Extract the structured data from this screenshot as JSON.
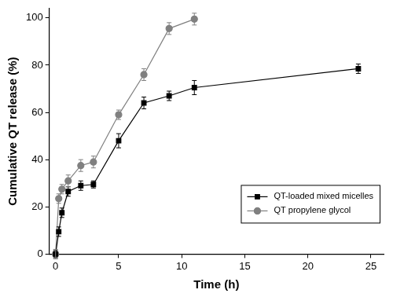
{
  "chart_data": {
    "type": "line",
    "x_label": "Time (h)",
    "y_label": "Cumulative QT release (%)",
    "xlim": [
      -0.5,
      26
    ],
    "xticks": [
      0,
      5,
      10,
      15,
      20,
      25
    ],
    "ylim": [
      0,
      104
    ],
    "yticks": [
      0,
      20,
      40,
      60,
      80,
      100
    ],
    "grid": false,
    "legend": "lower right",
    "series": [
      {
        "name": "QT-loaded mixed micelles",
        "color": "#000000",
        "marker": "square",
        "line_style": "solid",
        "x": [
          0,
          0.25,
          0.5,
          1,
          2,
          3,
          5,
          7,
          9,
          11,
          24
        ],
        "values": [
          0,
          9.5,
          17.5,
          26.5,
          29,
          29.5,
          48,
          64,
          67,
          70.5,
          78.5
        ],
        "errors": [
          1.5,
          2,
          2,
          2,
          2,
          1.5,
          3,
          2.5,
          2,
          3,
          2
        ]
      },
      {
        "name": "QT propylene glycol",
        "color": "#808080",
        "marker": "circle",
        "line_style": "solid",
        "x": [
          0,
          0.25,
          0.5,
          1,
          2,
          3,
          5,
          7,
          9,
          11
        ],
        "values": [
          0,
          23.5,
          27.5,
          31,
          37.5,
          39,
          59,
          76,
          95.5,
          99.5
        ],
        "errors": [
          2,
          2,
          2,
          2.5,
          2.5,
          2.5,
          2,
          2.5,
          2.5,
          2.5
        ]
      }
    ]
  }
}
